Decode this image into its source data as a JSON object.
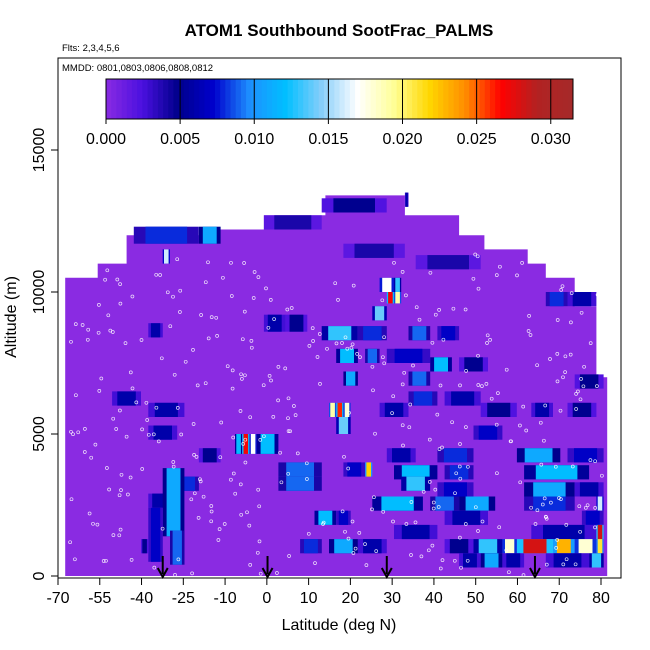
{
  "chart_data": {
    "type": "heatmap",
    "title": "ATOM1 Southbound SootFrac_PALMS",
    "flights_note": "Flts: 2,3,4,5,6",
    "dates_note": "MMDD: 0801,0803,0806,0808,0812",
    "xlabel": "Latitude (deg N)",
    "ylabel": "Altitude (m)",
    "xlim": [
      -70,
      82
    ],
    "ylim": [
      0,
      17500
    ],
    "x_tick_labels": [
      "-70",
      "-55",
      "-40",
      "-25",
      "-10",
      "0",
      "10",
      "20",
      "30",
      "40",
      "50",
      "60",
      "70",
      "80"
    ],
    "y_ticks": [
      0,
      5000,
      10000,
      15000
    ],
    "colorbar": {
      "ticks": [
        0.0,
        0.005,
        0.01,
        0.015,
        0.02,
        0.025,
        0.03
      ],
      "tick_labels": [
        "0.000",
        "0.005",
        "0.010",
        "0.015",
        "0.020",
        "0.025",
        "0.030"
      ],
      "range": [
        0.0,
        0.0315
      ],
      "colors": [
        "#8a2be2",
        "#4b10e0",
        "#00008b",
        "#0000cd",
        "#1e90ff",
        "#00bfff",
        "#87cefa",
        "#ffffff",
        "#ffff99",
        "#ffd700",
        "#ff8c00",
        "#ff0000",
        "#b22222",
        "#a52a2a"
      ]
    },
    "sootfrac_background": 0.0,
    "envelope": [
      [
        -69,
        10500
      ],
      [
        -60,
        10500
      ],
      [
        -60,
        11000
      ],
      [
        -52,
        11000
      ],
      [
        -52,
        12000
      ],
      [
        -30,
        12000
      ],
      [
        -30,
        12200
      ],
      [
        -14,
        12200
      ],
      [
        -14,
        12700
      ],
      [
        3,
        12700
      ],
      [
        3,
        13400
      ],
      [
        25,
        13400
      ],
      [
        25,
        12700
      ],
      [
        40,
        12700
      ],
      [
        40,
        12000
      ],
      [
        47,
        12000
      ],
      [
        47,
        11500
      ],
      [
        59,
        11500
      ],
      [
        59,
        11000
      ],
      [
        64,
        11000
      ],
      [
        64,
        10500
      ],
      [
        72,
        10500
      ],
      [
        72,
        9500
      ],
      [
        78,
        9500
      ],
      [
        78,
        7000
      ],
      [
        81,
        7000
      ],
      [
        81,
        0
      ],
      [
        -69,
        0
      ]
    ],
    "cells": [
      {
        "lat": [
          -50,
          -32
        ],
        "alt": [
          11700,
          12300
        ],
        "v": 0.008
      },
      {
        "lat": [
          -32,
          -26
        ],
        "alt": [
          11700,
          12300
        ],
        "v": 0.011
      },
      {
        "lat": [
          -42,
          -40
        ],
        "alt": [
          11000,
          11500
        ],
        "v": 0.016
      },
      {
        "lat": [
          -14,
          2
        ],
        "alt": [
          12200,
          12700
        ],
        "v": 0.004
      },
      {
        "lat": [
          2,
          20
        ],
        "alt": [
          12800,
          13300
        ],
        "v": 0.005
      },
      {
        "lat": [
          25,
          26
        ],
        "alt": [
          13000,
          13500
        ],
        "v": 0.006
      },
      {
        "lat": [
          8,
          25
        ],
        "alt": [
          11200,
          11700
        ],
        "v": 0.004
      },
      {
        "lat": [
          28,
          46
        ],
        "alt": [
          10800,
          11300
        ],
        "v": 0.004
      },
      {
        "lat": [
          18,
          22
        ],
        "alt": [
          10000,
          10500
        ],
        "v": 0.017
      },
      {
        "lat": [
          22,
          24
        ],
        "alt": [
          10000,
          10500
        ],
        "v": 0.013
      },
      {
        "lat": [
          20,
          22
        ],
        "alt": [
          9600,
          10000
        ],
        "v": 0.027
      },
      {
        "lat": [
          22,
          24
        ],
        "alt": [
          9600,
          10000
        ],
        "v": 0.019
      },
      {
        "lat": [
          16,
          20
        ],
        "alt": [
          9000,
          9500
        ],
        "v": 0.014
      },
      {
        "lat": [
          -14,
          -8
        ],
        "alt": [
          8600,
          9200
        ],
        "v": 0.006
      },
      {
        "lat": [
          -8,
          -2
        ],
        "alt": [
          8600,
          9200
        ],
        "v": 0.005
      },
      {
        "lat": [
          2,
          12
        ],
        "alt": [
          8300,
          8800
        ],
        "v": 0.013
      },
      {
        "lat": [
          12,
          20
        ],
        "alt": [
          8300,
          8800
        ],
        "v": 0.008
      },
      {
        "lat": [
          26,
          32
        ],
        "alt": [
          8300,
          8800
        ],
        "v": 0.009
      },
      {
        "lat": [
          34,
          40
        ],
        "alt": [
          8300,
          8800
        ],
        "v": 0.007
      },
      {
        "lat": [
          64,
          70
        ],
        "alt": [
          9500,
          10000
        ],
        "v": 0.008
      },
      {
        "lat": [
          70,
          78
        ],
        "alt": [
          9500,
          10000
        ],
        "v": 0.006
      },
      {
        "lat": [
          -46,
          -42
        ],
        "alt": [
          8400,
          8900
        ],
        "v": 0.006
      },
      {
        "lat": [
          6,
          12
        ],
        "alt": [
          7500,
          8000
        ],
        "v": 0.012
      },
      {
        "lat": [
          14,
          18
        ],
        "alt": [
          7500,
          8000
        ],
        "v": 0.009
      },
      {
        "lat": [
          20,
          32
        ],
        "alt": [
          7500,
          8000
        ],
        "v": 0.007
      },
      {
        "lat": [
          32,
          38
        ],
        "alt": [
          7200,
          7700
        ],
        "v": 0.012
      },
      {
        "lat": [
          40,
          48
        ],
        "alt": [
          7200,
          7700
        ],
        "v": 0.005
      },
      {
        "lat": [
          8,
          12
        ],
        "alt": [
          6700,
          7200
        ],
        "v": 0.011
      },
      {
        "lat": [
          26,
          32
        ],
        "alt": [
          6700,
          7200
        ],
        "v": 0.009
      },
      {
        "lat": [
          72,
          80
        ],
        "alt": [
          6600,
          7100
        ],
        "v": 0.005
      },
      {
        "lat": [
          -56,
          -48
        ],
        "alt": [
          6000,
          6500
        ],
        "v": 0.006
      },
      {
        "lat": [
          26,
          34
        ],
        "alt": [
          6000,
          6500
        ],
        "v": 0.008
      },
      {
        "lat": [
          36,
          46
        ],
        "alt": [
          6000,
          6500
        ],
        "v": 0.006
      },
      {
        "lat": [
          -46,
          -36
        ],
        "alt": [
          5600,
          6100
        ],
        "v": 0.006
      },
      {
        "lat": [
          4,
          6
        ],
        "alt": [
          5600,
          6100
        ],
        "v": 0.019
      },
      {
        "lat": [
          6,
          8
        ],
        "alt": [
          5600,
          6100
        ],
        "v": 0.026
      },
      {
        "lat": [
          8,
          10
        ],
        "alt": [
          5600,
          6100
        ],
        "v": 0.018
      },
      {
        "lat": [
          6,
          10
        ],
        "alt": [
          5000,
          5600
        ],
        "v": 0.014
      },
      {
        "lat": [
          18,
          26
        ],
        "alt": [
          5600,
          6100
        ],
        "v": 0.006
      },
      {
        "lat": [
          46,
          56
        ],
        "alt": [
          5600,
          6100
        ],
        "v": 0.005
      },
      {
        "lat": [
          60,
          66
        ],
        "alt": [
          5600,
          6100
        ],
        "v": 0.006
      },
      {
        "lat": [
          70,
          78
        ],
        "alt": [
          5600,
          6100
        ],
        "v": 0.005
      },
      {
        "lat": [
          -46,
          -38
        ],
        "alt": [
          4800,
          5300
        ],
        "v": 0.006
      },
      {
        "lat": [
          44,
          52
        ],
        "alt": [
          4800,
          5300
        ],
        "v": 0.007
      },
      {
        "lat": [
          -22,
          -20
        ],
        "alt": [
          4300,
          5000
        ],
        "v": 0.012
      },
      {
        "lat": [
          -20,
          -18
        ],
        "alt": [
          4300,
          5000
        ],
        "v": 0.027
      },
      {
        "lat": [
          -18,
          -16
        ],
        "alt": [
          4300,
          5000
        ],
        "v": 0.017
      },
      {
        "lat": [
          -16,
          -10
        ],
        "alt": [
          4300,
          5000
        ],
        "v": 0.012
      },
      {
        "lat": [
          -32,
          -26
        ],
        "alt": [
          4000,
          4500
        ],
        "v": 0.005
      },
      {
        "lat": [
          20,
          28
        ],
        "alt": [
          4000,
          4500
        ],
        "v": 0.006
      },
      {
        "lat": [
          34,
          44
        ],
        "alt": [
          4000,
          4500
        ],
        "v": 0.008
      },
      {
        "lat": [
          56,
          68
        ],
        "alt": [
          4000,
          4500
        ],
        "v": 0.011
      },
      {
        "lat": [
          70,
          80
        ],
        "alt": [
          4000,
          4500
        ],
        "v": 0.007
      },
      {
        "lat": [
          -10,
          2
        ],
        "alt": [
          3500,
          4000
        ],
        "v": 0.009
      },
      {
        "lat": [
          8,
          14
        ],
        "alt": [
          3500,
          4000
        ],
        "v": 0.007
      },
      {
        "lat": [
          22,
          34
        ],
        "alt": [
          3400,
          3900
        ],
        "v": 0.012
      },
      {
        "lat": [
          36,
          44
        ],
        "alt": [
          3400,
          3900
        ],
        "v": 0.008
      },
      {
        "lat": [
          58,
          76
        ],
        "alt": [
          3400,
          3900
        ],
        "v": 0.012
      },
      {
        "lat": [
          14,
          16
        ],
        "alt": [
          3500,
          4000
        ],
        "v": 0.022
      },
      {
        "lat": [
          -38,
          -32
        ],
        "alt": [
          3000,
          3500
        ],
        "v": 0.008
      },
      {
        "lat": [
          -10,
          2
        ],
        "alt": [
          3000,
          3500
        ],
        "v": 0.009
      },
      {
        "lat": [
          24,
          32
        ],
        "alt": [
          3000,
          3500
        ],
        "v": 0.013
      },
      {
        "lat": [
          34,
          44
        ],
        "alt": [
          2800,
          3300
        ],
        "v": 0.007
      },
      {
        "lat": [
          58,
          72
        ],
        "alt": [
          2800,
          3300
        ],
        "v": 0.011
      },
      {
        "lat": [
          72,
          80
        ],
        "alt": [
          2800,
          3300
        ],
        "v": 0.006
      },
      {
        "lat": [
          -46,
          -40
        ],
        "alt": [
          2400,
          2900
        ],
        "v": 0.006
      },
      {
        "lat": [
          16,
          30
        ],
        "alt": [
          2300,
          2800
        ],
        "v": 0.012
      },
      {
        "lat": [
          32,
          40
        ],
        "alt": [
          2300,
          2800
        ],
        "v": 0.009
      },
      {
        "lat": [
          40,
          50
        ],
        "alt": [
          2300,
          2800
        ],
        "v": 0.011
      },
      {
        "lat": [
          58,
          72
        ],
        "alt": [
          2300,
          2800
        ],
        "v": 0.008
      },
      {
        "lat": [
          78,
          80
        ],
        "alt": [
          2300,
          2800
        ],
        "v": 0.016
      },
      {
        "lat": [
          0,
          6
        ],
        "alt": [
          1800,
          2300
        ],
        "v": 0.012
      },
      {
        "lat": [
          6,
          10
        ],
        "alt": [
          1800,
          2300
        ],
        "v": 0.007
      },
      {
        "lat": [
          36,
          48
        ],
        "alt": [
          1800,
          2300
        ],
        "v": 0.006
      },
      {
        "lat": [
          74,
          80
        ],
        "alt": [
          1800,
          2300
        ],
        "v": 0.007
      },
      {
        "lat": [
          -42,
          -36
        ],
        "alt": [
          1400,
          3800
        ],
        "v": 0.011
      },
      {
        "lat": [
          -46,
          -42
        ],
        "alt": [
          500,
          2400
        ],
        "v": 0.007
      },
      {
        "lat": [
          -40,
          -36
        ],
        "alt": [
          400,
          1600
        ],
        "v": 0.009
      },
      {
        "lat": [
          22,
          34
        ],
        "alt": [
          1300,
          1800
        ],
        "v": 0.006
      },
      {
        "lat": [
          60,
          78
        ],
        "alt": [
          1300,
          1800
        ],
        "v": 0.006
      },
      {
        "lat": [
          78,
          80
        ],
        "alt": [
          1300,
          1800
        ],
        "v": 0.028
      },
      {
        "lat": [
          -4,
          2
        ],
        "alt": [
          800,
          1300
        ],
        "v": 0.008
      },
      {
        "lat": [
          4,
          12
        ],
        "alt": [
          800,
          1300
        ],
        "v": 0.011
      },
      {
        "lat": [
          12,
          20
        ],
        "alt": [
          800,
          1300
        ],
        "v": 0.006
      },
      {
        "lat": [
          36,
          44
        ],
        "alt": [
          800,
          1300
        ],
        "v": 0.005
      },
      {
        "lat": [
          44,
          52
        ],
        "alt": [
          800,
          1300
        ],
        "v": 0.013
      },
      {
        "lat": [
          52,
          56
        ],
        "alt": [
          800,
          1300
        ],
        "v": 0.018
      },
      {
        "lat": [
          56,
          66
        ],
        "alt": [
          800,
          1300
        ],
        "v": 0.028
      },
      {
        "lat": [
          66,
          72
        ],
        "alt": [
          800,
          1300
        ],
        "v": 0.023
      },
      {
        "lat": [
          72,
          78
        ],
        "alt": [
          800,
          1300
        ],
        "v": 0.018
      },
      {
        "lat": [
          78,
          80
        ],
        "alt": [
          800,
          1300
        ],
        "v": 0.021
      },
      {
        "lat": [
          40,
          46
        ],
        "alt": [
          300,
          800
        ],
        "v": 0.006
      },
      {
        "lat": [
          46,
          52
        ],
        "alt": [
          300,
          800
        ],
        "v": 0.011
      },
      {
        "lat": [
          52,
          58
        ],
        "alt": [
          300,
          800
        ],
        "v": 0.006
      },
      {
        "lat": [
          64,
          76
        ],
        "alt": [
          300,
          800
        ],
        "v": 0.006
      },
      {
        "lat": [
          76,
          80
        ],
        "alt": [
          300,
          800
        ],
        "v": 0.013
      },
      {
        "lat": [
          -48,
          -46
        ],
        "alt": [
          800,
          1300
        ],
        "v": 0.005
      }
    ],
    "arrows_lat": [
      -42,
      -13,
      20,
      61
    ]
  }
}
